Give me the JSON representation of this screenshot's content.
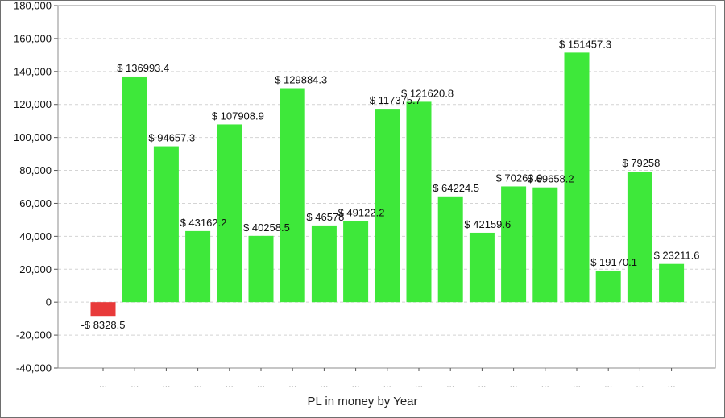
{
  "chart_data": {
    "type": "bar",
    "title": "",
    "xlabel": "PL in money by Year",
    "ylabel": "",
    "ylim": [
      -40000,
      180000
    ],
    "yticks": [
      -40000,
      -20000,
      0,
      20000,
      40000,
      60000,
      80000,
      100000,
      120000,
      140000,
      160000,
      180000
    ],
    "ytick_labels": [
      "-40,000",
      "-20,000",
      "0",
      "20,000",
      "40,000",
      "60,000",
      "80,000",
      "100,000",
      "120,000",
      "140,000",
      "160,000",
      "180,000"
    ],
    "grid": true,
    "legend": "none",
    "positive_color": "#3ee83a",
    "negative_color": "#e83a3a",
    "categories": [
      "...",
      "...",
      "...",
      "...",
      "...",
      "...",
      "...",
      "...",
      "...",
      "...",
      "...",
      "...",
      "...",
      "...",
      "...",
      "...",
      "...",
      "...",
      "..."
    ],
    "values": [
      -8328.5,
      136993.4,
      94657.3,
      43162.2,
      107908.9,
      40258.5,
      129884.3,
      46578,
      49122.2,
      117375.7,
      121620.8,
      64224.5,
      42159.6,
      70263.9,
      69658.2,
      151457.3,
      19170.1,
      79258,
      23211.6
    ],
    "data_labels": [
      "-$ 8328.5",
      "$ 136993.4",
      "$ 94657.3",
      "$ 43162.2",
      "$ 107908.9",
      "$ 40258.5",
      "$ 129884.3",
      "$ 46578",
      "$ 49122.2",
      "$ 117375.7",
      "$ 121620.8",
      "$ 64224.5",
      "$ 42159.6",
      "$ 70263.9",
      "$ 69658.2",
      "$ 151457.3",
      "$ 19170.1",
      "$ 79258",
      "$ 23211.6"
    ]
  }
}
